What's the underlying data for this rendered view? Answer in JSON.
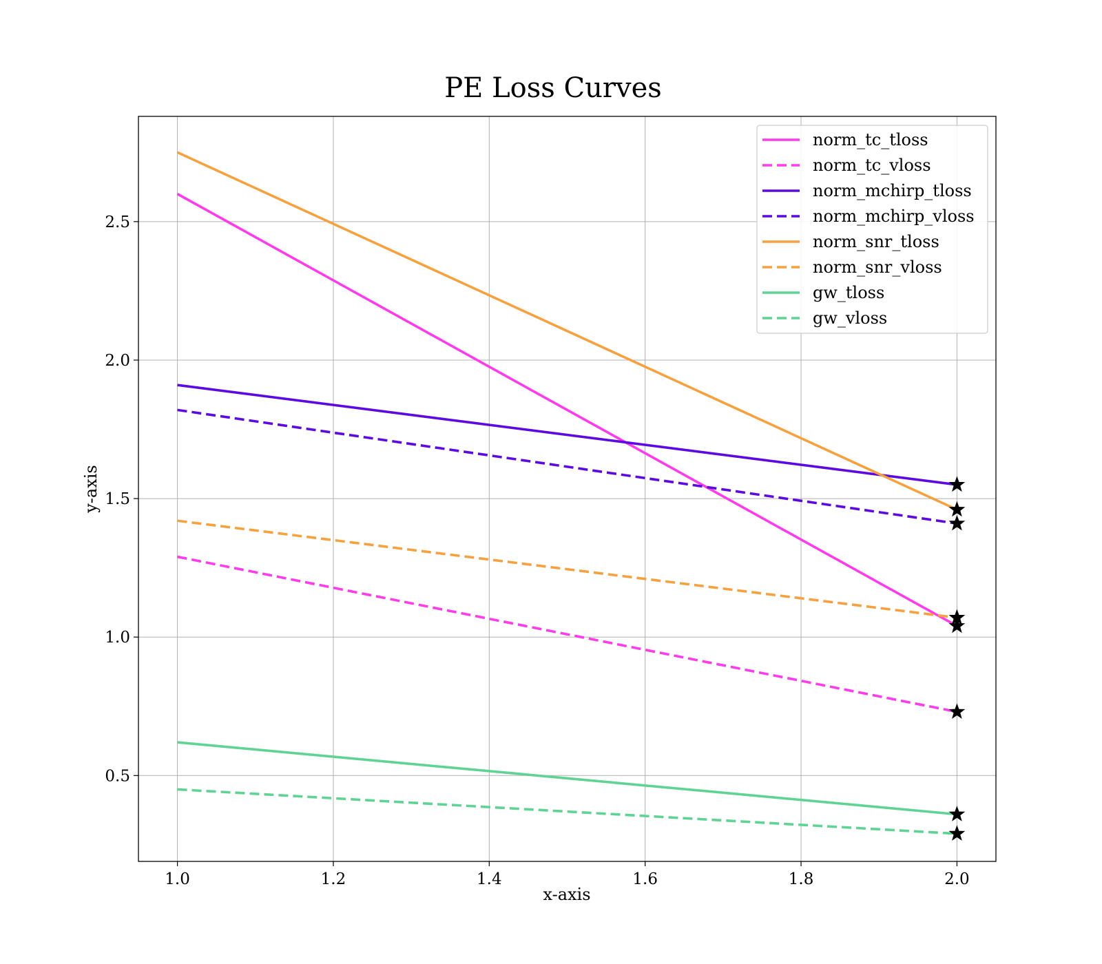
{
  "chart_data": {
    "type": "line",
    "title": "PE Loss Curves",
    "xlabel": "x-axis",
    "ylabel": "y-axis",
    "xlim": [
      0.95,
      2.05
    ],
    "ylim": [
      0.19,
      2.88
    ],
    "xticks": [
      "1.0",
      "1.2",
      "1.4",
      "1.6",
      "1.8",
      "2.0"
    ],
    "yticks": [
      "0.5",
      "1.0",
      "1.5",
      "2.0",
      "2.5"
    ],
    "grid": true,
    "legend_position": "top-right",
    "end_marker": "star",
    "series": [
      {
        "name": "norm_tc_tloss",
        "x": [
          1,
          2
        ],
        "y": [
          2.6,
          1.04
        ],
        "color": "#ff3ce9",
        "dash": "solid"
      },
      {
        "name": "norm_tc_vloss",
        "x": [
          1,
          2
        ],
        "y": [
          1.29,
          0.73
        ],
        "color": "#ff3ce9",
        "dash": "dashed"
      },
      {
        "name": "norm_mchirp_tloss",
        "x": [
          1,
          2
        ],
        "y": [
          1.91,
          1.55
        ],
        "color": "#5c0ae0",
        "dash": "solid"
      },
      {
        "name": "norm_mchirp_vloss",
        "x": [
          1,
          2
        ],
        "y": [
          1.82,
          1.41
        ],
        "color": "#5c0ae0",
        "dash": "dashed"
      },
      {
        "name": "norm_snr_tloss",
        "x": [
          1,
          2
        ],
        "y": [
          2.75,
          1.46
        ],
        "color": "#f5a140",
        "dash": "solid"
      },
      {
        "name": "norm_snr_vloss",
        "x": [
          1,
          2
        ],
        "y": [
          1.42,
          1.07
        ],
        "color": "#f5a140",
        "dash": "dashed"
      },
      {
        "name": "gw_tloss",
        "x": [
          1,
          2
        ],
        "y": [
          0.62,
          0.36
        ],
        "color": "#5fd394",
        "dash": "solid"
      },
      {
        "name": "gw_vloss",
        "x": [
          1,
          2
        ],
        "y": [
          0.45,
          0.29
        ],
        "color": "#5fd394",
        "dash": "dashed"
      }
    ]
  }
}
